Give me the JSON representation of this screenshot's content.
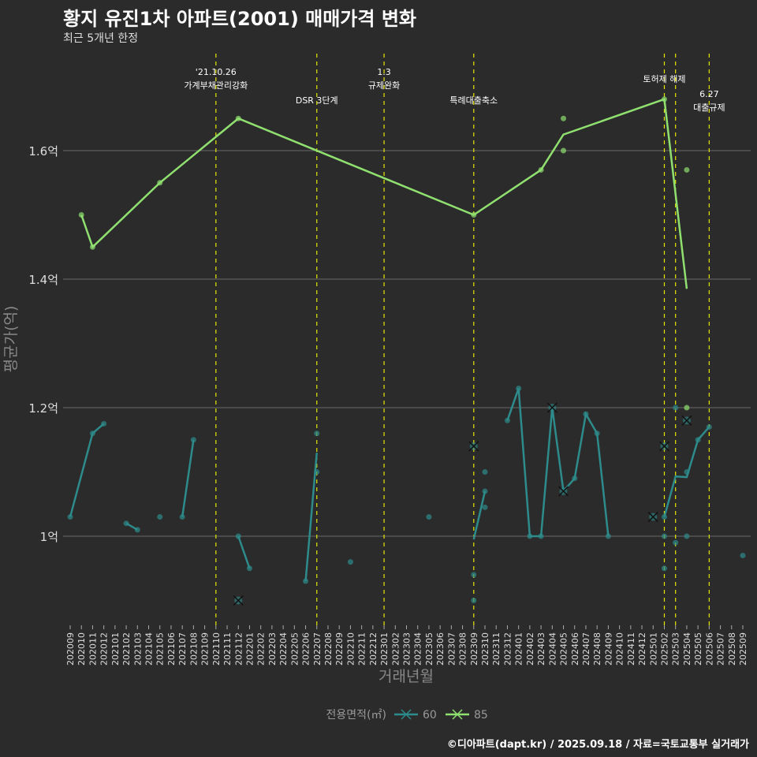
{
  "title": "황지 유진1차 아파트(2001) 매매가격 변화",
  "subtitle": "최근 5개년 한정",
  "caption": "©디아파트(dapt.kr) / 2025.09.18 / 자료=국토교통부 실거래가",
  "chart_data": {
    "type": "line",
    "xlabel": "거래년월",
    "ylabel": "평균가(억)",
    "ylim": [
      0.865,
      1.745
    ],
    "yticks": [
      {
        "v": 1.0,
        "label": "1억"
      },
      {
        "v": 1.2,
        "label": "1.2억"
      },
      {
        "v": 1.4,
        "label": "1.4억"
      },
      {
        "v": 1.6,
        "label": "1.6억"
      }
    ],
    "x_categories": [
      "202009",
      "202010",
      "202011",
      "202012",
      "202101",
      "202102",
      "202103",
      "202104",
      "202105",
      "202106",
      "202107",
      "202108",
      "202109",
      "202110",
      "202111",
      "202112",
      "202201",
      "202202",
      "202203",
      "202204",
      "202205",
      "202206",
      "202207",
      "202208",
      "202209",
      "202210",
      "202211",
      "202212",
      "202301",
      "202302",
      "202303",
      "202304",
      "202305",
      "202306",
      "202307",
      "202308",
      "202309",
      "202310",
      "202311",
      "202312",
      "202401",
      "202402",
      "202403",
      "202404",
      "202405",
      "202406",
      "202407",
      "202408",
      "202409",
      "202410",
      "202411",
      "202412",
      "202501",
      "202502",
      "202503",
      "202504",
      "202505",
      "202506",
      "202507",
      "202508",
      "202509"
    ],
    "legend": {
      "title": "전용면적(㎡)",
      "placement": "bottom"
    },
    "events": [
      {
        "month": "202110",
        "label": [
          "'21.10.26",
          "가계부채관리강화"
        ],
        "row": 0
      },
      {
        "month": "202207",
        "label": [
          "DSR 3단계"
        ],
        "row": 2
      },
      {
        "month": "202301",
        "label": [
          "1.3",
          "규제완화"
        ],
        "row": 0
      },
      {
        "month": "202309",
        "label": [
          "특례대출축소"
        ],
        "row": 2
      },
      {
        "month": "202502",
        "label": [
          "토허제 해제"
        ],
        "row": 1
      },
      {
        "month": "202503",
        "label": [],
        "row": 1
      },
      {
        "month": "202506",
        "label": [
          "6.27",
          "대출규제"
        ],
        "row": 3
      }
    ],
    "series": [
      {
        "name": "60",
        "color": "#2e8b8b",
        "segments": [
          [
            [
              "202009",
              1.03
            ],
            [
              "202011",
              1.16
            ],
            [
              "202012",
              1.175
            ]
          ],
          [
            [
              "202102",
              1.02
            ],
            [
              "202103",
              1.01
            ]
          ],
          [
            [
              "202107",
              1.03
            ],
            [
              "202108",
              1.15
            ]
          ],
          [
            [
              "202112",
              1.0
            ],
            [
              "202201",
              0.95
            ]
          ],
          [
            [
              "202206",
              0.93
            ],
            [
              "202207",
              1.13
            ]
          ],
          [
            [
              "202309",
              0.995
            ],
            [
              "202310",
              1.07
            ]
          ],
          [
            [
              "202312",
              1.18
            ],
            [
              "202401",
              1.23
            ],
            [
              "202402",
              1.0
            ],
            [
              "202403",
              1.0
            ],
            [
              "202404",
              1.2
            ],
            [
              "202405",
              1.07
            ],
            [
              "202406",
              1.09
            ],
            [
              "202407",
              1.19
            ],
            [
              "202408",
              1.16
            ],
            [
              "202409",
              1.0
            ]
          ],
          [
            [
              "202502",
              1.03
            ],
            [
              "202503",
              1.093
            ],
            [
              "202504",
              1.092
            ],
            [
              "202505",
              1.15
            ],
            [
              "202506",
              1.17
            ]
          ]
        ],
        "points": [
          [
            "202009",
            1.03
          ],
          [
            "202011",
            1.16
          ],
          [
            "202012",
            1.175
          ],
          [
            "202102",
            1.02
          ],
          [
            "202103",
            1.01
          ],
          [
            "202105",
            1.03
          ],
          [
            "202107",
            1.03
          ],
          [
            "202108",
            1.15
          ],
          [
            "202112",
            1.0
          ],
          [
            "202201",
            0.95
          ],
          [
            "202112",
            0.9,
            "x"
          ],
          [
            "202206",
            0.93
          ],
          [
            "202207",
            1.16
          ],
          [
            "202207",
            1.1
          ],
          [
            "202210",
            0.96
          ],
          [
            "202305",
            1.03
          ],
          [
            "202309",
            0.94
          ],
          [
            "202309",
            0.9
          ],
          [
            "202309",
            1.14,
            "x"
          ],
          [
            "202310",
            1.07
          ],
          [
            "202310",
            1.1
          ],
          [
            "202310",
            1.045
          ],
          [
            "202312",
            1.18
          ],
          [
            "202401",
            1.23
          ],
          [
            "202402",
            1.0
          ],
          [
            "202403",
            1.0
          ],
          [
            "202404",
            1.2,
            "x"
          ],
          [
            "202405",
            1.07,
            "x"
          ],
          [
            "202406",
            1.09
          ],
          [
            "202407",
            1.19
          ],
          [
            "202408",
            1.16
          ],
          [
            "202409",
            1.0
          ],
          [
            "202501",
            1.03,
            "x"
          ],
          [
            "202502",
            1.03
          ],
          [
            "202502",
            1.0
          ],
          [
            "202502",
            0.95
          ],
          [
            "202502",
            1.14,
            "x"
          ],
          [
            "202503",
            1.2
          ],
          [
            "202503",
            0.99
          ],
          [
            "202504",
            1.1
          ],
          [
            "202504",
            1.0
          ],
          [
            "202504",
            1.18,
            "x"
          ],
          [
            "202505",
            1.15
          ],
          [
            "202506",
            1.17
          ],
          [
            "202509",
            0.97
          ]
        ]
      },
      {
        "name": "85",
        "color": "#90e070",
        "segments": [
          [
            [
              "202010",
              1.5
            ],
            [
              "202011",
              1.45
            ],
            [
              "202105",
              1.55
            ],
            [
              "202112",
              1.65
            ],
            [
              "202309",
              1.5
            ],
            [
              "202403",
              1.57
            ],
            [
              "202405",
              1.625
            ],
            [
              "202502",
              1.68
            ],
            [
              "202504",
              1.385
            ]
          ]
        ],
        "points": [
          [
            "202010",
            1.5
          ],
          [
            "202011",
            1.45
          ],
          [
            "202105",
            1.55
          ],
          [
            "202112",
            1.65
          ],
          [
            "202309",
            1.5
          ],
          [
            "202403",
            1.57
          ],
          [
            "202405",
            1.65
          ],
          [
            "202405",
            1.6
          ],
          [
            "202502",
            1.68
          ],
          [
            "202504",
            1.57
          ],
          [
            "202504",
            1.2
          ]
        ]
      }
    ]
  }
}
